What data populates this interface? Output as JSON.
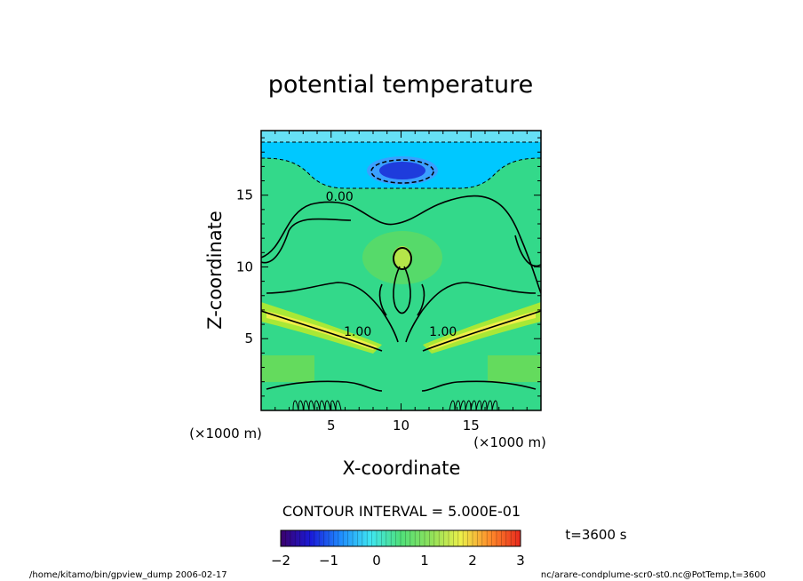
{
  "chart_data": {
    "type": "heatmap",
    "title": "potential temperature",
    "xlabel": "X-coordinate",
    "ylabel": "Z-coordinate",
    "x_unit": "(×1000 m)",
    "y_unit": "(×1000 m)",
    "xlim": [
      0,
      20
    ],
    "ylim": [
      0,
      19.5
    ],
    "x_ticks": [
      5,
      10,
      15
    ],
    "y_ticks": [
      5,
      10,
      15
    ],
    "contour_labels": [
      {
        "text": "0.00",
        "x": 5.6,
        "z": 14.6
      },
      {
        "text": "1.00",
        "x": 6.9,
        "z": 5.2
      },
      {
        "text": "1.00",
        "x": 13.0,
        "z": 5.2
      }
    ],
    "contour_interval_text": "CONTOUR INTERVAL = 5.000E-01",
    "time_text": "t=3600 s",
    "colorbar": {
      "ticks": [
        "-2",
        "-1",
        "0",
        "1",
        "2",
        "3"
      ],
      "min": -2,
      "max": 3,
      "colors": [
        "#3b006a",
        "#1a1ad8",
        "#1f8cff",
        "#3fe6f2",
        "#4fe07a",
        "#8ee05a",
        "#ecf04a",
        "#ff8a2a",
        "#e8281e"
      ]
    },
    "field_colors": {
      "background": "#33d98a",
      "cold_top": "#66e0f5",
      "cold_band": "#00c8ff",
      "cold_core": "#1e3cdc",
      "warm_light": "#79dc4a",
      "warm": "#a8e836",
      "hot": "#f0ee48"
    }
  },
  "footer": {
    "left": "/home/kitamo/bin/gpview_dump  2006-02-17",
    "right": "nc/arare-condplume-scr0-st0.nc@PotTemp,t=3600"
  }
}
